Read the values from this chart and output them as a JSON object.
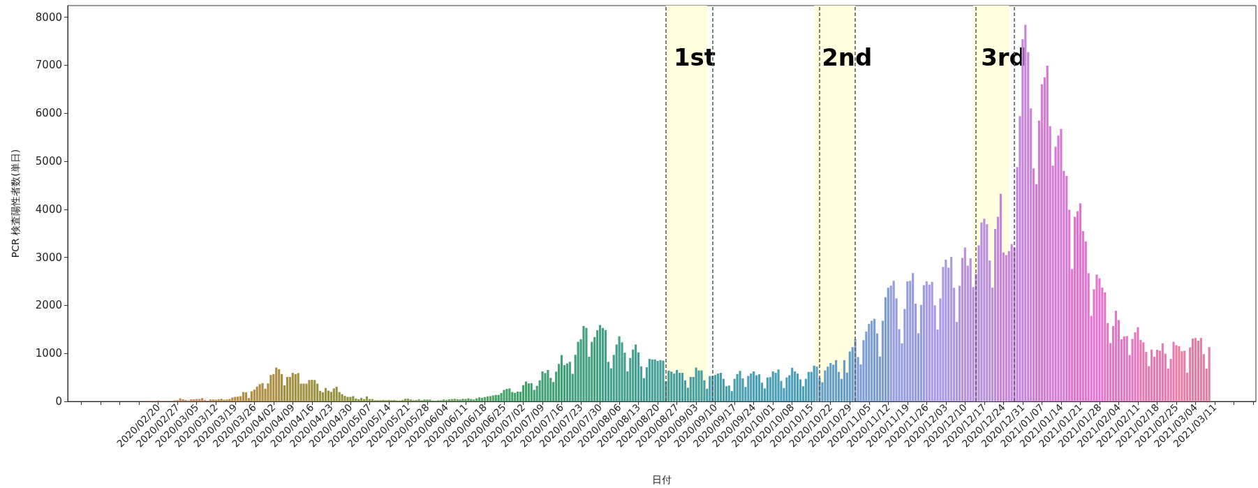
{
  "chart_data": {
    "type": "bar",
    "xlabel": "日付",
    "ylabel": "PCR 検査陽性者数(単日)",
    "xlim": [
      "2020-01-18",
      "2021-03-26"
    ],
    "ylim": [
      0,
      8240
    ],
    "yticks": [
      0,
      1000,
      2000,
      3000,
      4000,
      5000,
      6000,
      7000,
      8000
    ],
    "xticks": [
      {
        "value": "2020-01-23",
        "label": null
      },
      {
        "value": "2020-01-30",
        "label": null
      },
      {
        "value": "2020-02-06",
        "label": null
      },
      {
        "value": "2020-02-13",
        "label": null
      },
      {
        "value": "2020-02-20",
        "label": "2020/02/20"
      },
      {
        "value": "2020-02-27",
        "label": "2020/02/27"
      },
      {
        "value": "2020-03-05",
        "label": "2020/03/05"
      },
      {
        "value": "2020-03-12",
        "label": "2020/03/12"
      },
      {
        "value": "2020-03-19",
        "label": "2020/03/19"
      },
      {
        "value": "2020-03-26",
        "label": "2020/03/26"
      },
      {
        "value": "2020-04-02",
        "label": "2020/04/02"
      },
      {
        "value": "2020-04-09",
        "label": "2020/04/09"
      },
      {
        "value": "2020-04-16",
        "label": "2020/04/16"
      },
      {
        "value": "2020-04-23",
        "label": "2020/04/23"
      },
      {
        "value": "2020-04-30",
        "label": "2020/04/30"
      },
      {
        "value": "2020-05-07",
        "label": "2020/05/07"
      },
      {
        "value": "2020-05-14",
        "label": "2020/05/14"
      },
      {
        "value": "2020-05-21",
        "label": "2020/05/21"
      },
      {
        "value": "2020-05-28",
        "label": "2020/05/28"
      },
      {
        "value": "2020-06-04",
        "label": "2020/06/04"
      },
      {
        "value": "2020-06-11",
        "label": "2020/06/11"
      },
      {
        "value": "2020-06-18",
        "label": "2020/06/18"
      },
      {
        "value": "2020-06-25",
        "label": "2020/06/25"
      },
      {
        "value": "2020-07-02",
        "label": "2020/07/02"
      },
      {
        "value": "2020-07-09",
        "label": "2020/07/09"
      },
      {
        "value": "2020-07-16",
        "label": "2020/07/16"
      },
      {
        "value": "2020-07-23",
        "label": "2020/07/23"
      },
      {
        "value": "2020-07-30",
        "label": "2020/07/30"
      },
      {
        "value": "2020-08-06",
        "label": "2020/08/06"
      },
      {
        "value": "2020-08-13",
        "label": "2020/08/13"
      },
      {
        "value": "2020-08-20",
        "label": "2020/08/20"
      },
      {
        "value": "2020-08-27",
        "label": "2020/08/27"
      },
      {
        "value": "2020-09-03",
        "label": "2020/09/03"
      },
      {
        "value": "2020-09-10",
        "label": "2020/09/10"
      },
      {
        "value": "2020-09-17",
        "label": "2020/09/17"
      },
      {
        "value": "2020-09-24",
        "label": "2020/09/24"
      },
      {
        "value": "2020-10-01",
        "label": "2020/10/01"
      },
      {
        "value": "2020-10-08",
        "label": "2020/10/08"
      },
      {
        "value": "2020-10-15",
        "label": "2020/10/15"
      },
      {
        "value": "2020-10-22",
        "label": "2020/10/22"
      },
      {
        "value": "2020-10-29",
        "label": "2020/10/29"
      },
      {
        "value": "2020-11-05",
        "label": "2020/11/05"
      },
      {
        "value": "2020-11-12",
        "label": "2020/11/12"
      },
      {
        "value": "2020-11-19",
        "label": "2020/11/19"
      },
      {
        "value": "2020-11-26",
        "label": "2020/11/26"
      },
      {
        "value": "2020-12-03",
        "label": "2020/12/03"
      },
      {
        "value": "2020-12-10",
        "label": "2020/12/10"
      },
      {
        "value": "2020-12-17",
        "label": "2020/12/17"
      },
      {
        "value": "2020-12-24",
        "label": "2020/12/24"
      },
      {
        "value": "2020-12-31",
        "label": "2020/12/31"
      },
      {
        "value": "2021-01-07",
        "label": "2021/01/07"
      },
      {
        "value": "2021-01-14",
        "label": "2021/01/14"
      },
      {
        "value": "2021-01-21",
        "label": "2021/01/21"
      },
      {
        "value": "2021-01-28",
        "label": "2021/01/28"
      },
      {
        "value": "2021-02-04",
        "label": "2021/02/04"
      },
      {
        "value": "2021-02-11",
        "label": "2021/02/11"
      },
      {
        "value": "2021-02-18",
        "label": "2021/02/18"
      },
      {
        "value": "2021-02-25",
        "label": "2021/02/25"
      },
      {
        "value": "2021-03-04",
        "label": "2021/03/04"
      },
      {
        "value": "2021-03-11",
        "label": "2021/03/11"
      },
      {
        "value": "2021-03-18",
        "label": null
      },
      {
        "value": "2021-03-25",
        "label": null
      }
    ],
    "x": [
      "2020-02-15",
      "2020-02-16",
      "2020-02-17",
      "2020-02-18",
      "2020-02-19",
      "2020-02-20",
      "2020-02-21",
      "2020-02-22",
      "2020-02-23",
      "2020-02-24",
      "2020-02-25",
      "2020-02-26",
      "2020-02-27",
      "2020-02-28",
      "2020-02-29",
      "2020-03-01",
      "2020-03-02",
      "2020-03-03",
      "2020-03-04",
      "2020-03-05",
      "2020-03-06",
      "2020-03-07",
      "2020-03-08",
      "2020-03-09",
      "2020-03-10",
      "2020-03-11",
      "2020-03-12",
      "2020-03-13",
      "2020-03-14",
      "2020-03-15",
      "2020-03-16",
      "2020-03-17",
      "2020-03-18",
      "2020-03-19",
      "2020-03-20",
      "2020-03-21",
      "2020-03-22",
      "2020-03-23",
      "2020-03-24",
      "2020-03-25",
      "2020-03-26",
      "2020-03-27",
      "2020-03-28",
      "2020-03-29",
      "2020-03-30",
      "2020-03-31",
      "2020-04-01",
      "2020-04-02",
      "2020-04-03",
      "2020-04-04",
      "2020-04-05",
      "2020-04-06",
      "2020-04-07",
      "2020-04-08",
      "2020-04-09",
      "2020-04-10",
      "2020-04-11",
      "2020-04-12",
      "2020-04-13",
      "2020-04-14",
      "2020-04-15",
      "2020-04-16",
      "2020-04-17",
      "2020-04-18",
      "2020-04-19",
      "2020-04-20",
      "2020-04-21",
      "2020-04-22",
      "2020-04-23",
      "2020-04-24",
      "2020-04-25",
      "2020-04-26",
      "2020-04-27",
      "2020-04-28",
      "2020-04-29",
      "2020-04-30",
      "2020-05-01",
      "2020-05-02",
      "2020-05-03",
      "2020-05-04",
      "2020-05-05",
      "2020-05-06",
      "2020-05-07",
      "2020-05-08",
      "2020-05-09",
      "2020-05-10",
      "2020-05-11",
      "2020-05-12",
      "2020-05-13",
      "2020-05-14",
      "2020-05-15",
      "2020-05-16",
      "2020-05-17",
      "2020-05-18",
      "2020-05-19",
      "2020-05-20",
      "2020-05-21",
      "2020-05-22",
      "2020-05-23",
      "2020-05-24",
      "2020-05-25",
      "2020-05-26",
      "2020-05-27",
      "2020-05-28",
      "2020-05-29",
      "2020-05-30",
      "2020-05-31",
      "2020-06-01",
      "2020-06-02",
      "2020-06-03",
      "2020-06-04",
      "2020-06-05",
      "2020-06-06",
      "2020-06-07",
      "2020-06-08",
      "2020-06-09",
      "2020-06-10",
      "2020-06-11",
      "2020-06-12",
      "2020-06-13",
      "2020-06-14",
      "2020-06-15",
      "2020-06-16",
      "2020-06-17",
      "2020-06-18",
      "2020-06-19",
      "2020-06-20",
      "2020-06-21",
      "2020-06-22",
      "2020-06-23",
      "2020-06-24",
      "2020-06-25",
      "2020-06-26",
      "2020-06-27",
      "2020-06-28",
      "2020-06-29",
      "2020-06-30",
      "2020-07-01",
      "2020-07-02",
      "2020-07-03",
      "2020-07-04",
      "2020-07-05",
      "2020-07-06",
      "2020-07-07",
      "2020-07-08",
      "2020-07-09",
      "2020-07-10",
      "2020-07-11",
      "2020-07-12",
      "2020-07-13",
      "2020-07-14",
      "2020-07-15",
      "2020-07-16",
      "2020-07-17",
      "2020-07-18",
      "2020-07-19",
      "2020-07-20",
      "2020-07-21",
      "2020-07-22",
      "2020-07-23",
      "2020-07-24",
      "2020-07-25",
      "2020-07-26",
      "2020-07-27",
      "2020-07-28",
      "2020-07-29",
      "2020-07-30",
      "2020-07-31",
      "2020-08-01",
      "2020-08-02",
      "2020-08-03",
      "2020-08-04",
      "2020-08-05",
      "2020-08-06",
      "2020-08-07",
      "2020-08-08",
      "2020-08-09",
      "2020-08-10",
      "2020-08-11",
      "2020-08-12",
      "2020-08-13",
      "2020-08-14",
      "2020-08-15",
      "2020-08-16",
      "2020-08-17",
      "2020-08-18",
      "2020-08-19",
      "2020-08-20",
      "2020-08-21",
      "2020-08-22",
      "2020-08-23",
      "2020-08-24",
      "2020-08-25",
      "2020-08-26",
      "2020-08-27",
      "2020-08-28",
      "2020-08-29",
      "2020-08-30",
      "2020-08-31",
      "2020-09-01",
      "2020-09-02",
      "2020-09-03",
      "2020-09-04",
      "2020-09-05",
      "2020-09-06",
      "2020-09-07",
      "2020-09-08",
      "2020-09-09",
      "2020-09-10",
      "2020-09-11",
      "2020-09-12",
      "2020-09-13",
      "2020-09-14",
      "2020-09-15",
      "2020-09-16",
      "2020-09-17",
      "2020-09-18",
      "2020-09-19",
      "2020-09-20",
      "2020-09-21",
      "2020-09-22",
      "2020-09-23",
      "2020-09-24",
      "2020-09-25",
      "2020-09-26",
      "2020-09-27",
      "2020-09-28",
      "2020-09-29",
      "2020-09-30",
      "2020-10-01",
      "2020-10-02",
      "2020-10-03",
      "2020-10-04",
      "2020-10-05",
      "2020-10-06",
      "2020-10-07",
      "2020-10-08",
      "2020-10-09",
      "2020-10-10",
      "2020-10-11",
      "2020-10-12",
      "2020-10-13",
      "2020-10-14",
      "2020-10-15",
      "2020-10-16",
      "2020-10-17",
      "2020-10-18",
      "2020-10-19",
      "2020-10-20",
      "2020-10-21",
      "2020-10-22",
      "2020-10-23",
      "2020-10-24",
      "2020-10-25",
      "2020-10-26",
      "2020-10-27",
      "2020-10-28",
      "2020-10-29",
      "2020-10-30",
      "2020-10-31",
      "2020-11-01",
      "2020-11-02",
      "2020-11-03",
      "2020-11-04",
      "2020-11-05",
      "2020-11-06",
      "2020-11-07",
      "2020-11-08",
      "2020-11-09",
      "2020-11-10",
      "2020-11-11",
      "2020-11-12",
      "2020-11-13",
      "2020-11-14",
      "2020-11-15",
      "2020-11-16",
      "2020-11-17",
      "2020-11-18",
      "2020-11-19",
      "2020-11-20",
      "2020-11-21",
      "2020-11-22",
      "2020-11-23",
      "2020-11-24",
      "2020-11-25",
      "2020-11-26",
      "2020-11-27",
      "2020-11-28",
      "2020-11-29",
      "2020-11-30",
      "2020-12-01",
      "2020-12-02",
      "2020-12-03",
      "2020-12-04",
      "2020-12-05",
      "2020-12-06",
      "2020-12-07",
      "2020-12-08",
      "2020-12-09",
      "2020-12-10",
      "2020-12-11",
      "2020-12-12",
      "2020-12-13",
      "2020-12-14",
      "2020-12-15",
      "2020-12-16",
      "2020-12-17",
      "2020-12-18",
      "2020-12-19",
      "2020-12-20",
      "2020-12-21",
      "2020-12-22",
      "2020-12-23",
      "2020-12-24",
      "2020-12-25",
      "2020-12-26",
      "2020-12-27",
      "2020-12-28",
      "2020-12-29",
      "2020-12-30",
      "2020-12-31",
      "2021-01-01",
      "2021-01-02",
      "2021-01-03",
      "2021-01-04",
      "2021-01-05",
      "2021-01-06",
      "2021-01-07",
      "2021-01-08",
      "2021-01-09",
      "2021-01-10",
      "2021-01-11",
      "2021-01-12",
      "2021-01-13",
      "2021-01-14",
      "2021-01-15",
      "2021-01-16",
      "2021-01-17",
      "2021-01-18",
      "2021-01-19",
      "2021-01-20",
      "2021-01-21",
      "2021-01-22",
      "2021-01-23",
      "2021-01-24",
      "2021-01-25",
      "2021-01-26",
      "2021-01-27",
      "2021-01-28",
      "2021-01-29",
      "2021-01-30",
      "2021-01-31",
      "2021-02-01",
      "2021-02-02",
      "2021-02-03",
      "2021-02-04",
      "2021-02-05",
      "2021-02-06",
      "2021-02-07",
      "2021-02-08",
      "2021-02-09",
      "2021-02-10",
      "2021-02-11",
      "2021-02-12",
      "2021-02-13",
      "2021-02-14",
      "2021-02-15",
      "2021-02-16",
      "2021-02-17",
      "2021-02-18",
      "2021-02-19",
      "2021-02-20",
      "2021-02-21",
      "2021-02-22",
      "2021-02-23",
      "2021-02-24",
      "2021-02-25",
      "2021-02-26",
      "2021-02-27",
      "2021-02-28",
      "2021-03-01",
      "2021-03-02",
      "2021-03-03",
      "2021-03-04",
      "2021-03-05",
      "2021-03-06",
      "2021-03-07",
      "2021-03-08",
      "2021-03-09"
    ],
    "values": [
      10,
      10,
      10,
      10,
      15,
      20,
      15,
      10,
      10,
      10,
      15,
      20,
      25,
      65,
      45,
      30,
      20,
      45,
      45,
      50,
      50,
      70,
      30,
      15,
      40,
      40,
      35,
      45,
      55,
      35,
      40,
      50,
      80,
      95,
      100,
      110,
      195,
      190,
      70,
      210,
      245,
      310,
      360,
      380,
      265,
      375,
      550,
      570,
      705,
      670,
      570,
      335,
      510,
      510,
      595,
      570,
      590,
      370,
      370,
      370,
      445,
      450,
      445,
      370,
      220,
      190,
      280,
      225,
      200,
      270,
      305,
      195,
      150,
      115,
      95,
      95,
      110,
      60,
      45,
      75,
      50,
      105,
      50,
      50,
      25,
      25,
      25,
      30,
      25,
      30,
      25,
      30,
      20,
      20,
      30,
      55,
      55,
      40,
      25,
      30,
      45,
      25,
      40,
      40,
      40,
      20,
      15,
      25,
      25,
      40,
      30,
      45,
      50,
      55,
      45,
      40,
      55,
      50,
      65,
      50,
      40,
      65,
      85,
      75,
      90,
      105,
      110,
      125,
      135,
      135,
      175,
      240,
      260,
      270,
      195,
      180,
      205,
      200,
      340,
      415,
      375,
      380,
      240,
      325,
      440,
      625,
      590,
      655,
      490,
      405,
      620,
      780,
      965,
      755,
      790,
      825,
      575,
      970,
      1240,
      1295,
      1570,
      1530,
      930,
      1240,
      1340,
      1480,
      1590,
      1530,
      1485,
      825,
      690,
      970,
      1185,
      1355,
      1230,
      1015,
      625,
      905,
      1080,
      1185,
      1020,
      730,
      485,
      710,
      885,
      875,
      875,
      845,
      860,
      850,
      420,
      640,
      620,
      580,
      655,
      595,
      595,
      440,
      285,
      510,
      510,
      705,
      645,
      645,
      440,
      265,
      530,
      530,
      550,
      580,
      595,
      470,
      315,
      330,
      215,
      470,
      570,
      635,
      480,
      300,
      530,
      580,
      625,
      545,
      565,
      390,
      270,
      500,
      505,
      625,
      595,
      665,
      425,
      280,
      500,
      545,
      700,
      625,
      580,
      460,
      315,
      470,
      615,
      615,
      745,
      725,
      490,
      400,
      645,
      725,
      800,
      765,
      860,
      615,
      470,
      860,
      600,
      1040,
      1130,
      1295,
      925,
      770,
      1275,
      1455,
      1615,
      1680,
      1720,
      1415,
      935,
      1680,
      2170,
      2365,
      2410,
      2510,
      2145,
      1505,
      1210,
      1925,
      2500,
      2510,
      2670,
      2035,
      1420,
      2010,
      2420,
      2500,
      2430,
      2490,
      2000,
      1495,
      2145,
      2800,
      2950,
      2785,
      3010,
      2365,
      1655,
      2405,
      2985,
      3205,
      2825,
      2980,
      2380,
      2655,
      3250,
      3725,
      3805,
      3690,
      2935,
      2370,
      3590,
      3845,
      4325,
      3100,
      3045,
      3130,
      3275,
      3200,
      4880,
      5940,
      7540,
      7840,
      7270,
      6100,
      4850,
      4525,
      5845,
      6600,
      6745,
      6990,
      5730,
      4910,
      5300,
      5535,
      5670,
      4800,
      4695,
      3990,
      2755,
      3845,
      3960,
      4125,
      3545,
      3330,
      2670,
      1780,
      2335,
      2640,
      2565,
      2370,
      2270,
      1630,
      1215,
      1570,
      1890,
      1695,
      1295,
      1355,
      1360,
      965,
      1300,
      1440,
      1545,
      1280,
      1230,
      1030,
      735,
      1080,
      930,
      1075,
      1055,
      1210,
      995,
      685,
      885,
      1240,
      1170,
      1150,
      1045,
      1055,
      600,
      1125,
      1310,
      1320,
      1265,
      1320,
      985,
      685,
      1130
    ],
    "colors": [
      "#d2896e",
      "#d2896e",
      "#d2896e",
      "#d2896e",
      "#d2896e",
      "#d2896e",
      "#d2896e",
      "#d2896e",
      "#d2896e",
      "#d2896e",
      "#c68a5a",
      "#c68a5a",
      "#c68a5a",
      "#c68a5a",
      "#c68a5a",
      "#c68a5a",
      "#c68a5a",
      "#c68a5a",
      "#c68a5a",
      "#c68a5a",
      "#c68a5a",
      "#c68a5a",
      "#c68a5a",
      "#bb8c46",
      "#bb8c46",
      "#bb8c46",
      "#bb8c46",
      "#bb8c46",
      "#bb8c46",
      "#bb8c46",
      "#bb8c46",
      "#bb8c46",
      "#bb8c46",
      "#bb8c46",
      "#bb8c46",
      "#bb8c46",
      "#ae8e44",
      "#ae8e44",
      "#ae8e44",
      "#ae8e44",
      "#ae8e44",
      "#ae8e44",
      "#ae8e44",
      "#ae8e44",
      "#ae8e44",
      "#ae8e44",
      "#ae8e44",
      "#ae8e44",
      "#ae8e44",
      "#a39143",
      "#a39143",
      "#a39143",
      "#a39143",
      "#a39143",
      "#a39143",
      "#a39143",
      "#a39143",
      "#a39143",
      "#a39143",
      "#a39143",
      "#a39143",
      "#a39143",
      "#979240",
      "#979240",
      "#979240",
      "#979240",
      "#979240",
      "#979240",
      "#979240",
      "#979240",
      "#979240",
      "#979240",
      "#979240",
      "#979240",
      "#979240",
      "#8c9640",
      "#8c9640",
      "#8c9640",
      "#8c9640",
      "#8c9640",
      "#8c9640",
      "#8c9640",
      "#8c9640",
      "#8c9640",
      "#8c9640",
      "#8c9640",
      "#8c9640",
      "#8c9640",
      "#7c9a4c",
      "#7c9a4c",
      "#7c9a4c",
      "#7c9a4c",
      "#7c9a4c",
      "#7c9a4c",
      "#7c9a4c",
      "#7c9a4c",
      "#7c9a4c",
      "#7c9a4c",
      "#7c9a4c",
      "#7c9a4c",
      "#7c9a4c",
      "#6b9f58",
      "#6b9f58",
      "#6b9f58",
      "#6b9f58",
      "#6b9f58",
      "#6b9f58",
      "#6b9f58",
      "#6b9f58",
      "#6b9f58",
      "#6b9f58",
      "#6b9f58",
      "#6b9f58",
      "#6b9f58",
      "#6b9f58",
      "#57a262",
      "#57a262",
      "#57a262",
      "#57a262",
      "#57a262",
      "#57a262",
      "#57a262",
      "#57a262",
      "#57a262",
      "#57a262",
      "#57a262",
      "#57a262",
      "#57a262",
      "#42a169",
      "#42a169",
      "#42a169",
      "#42a169",
      "#42a169",
      "#42a169",
      "#42a169",
      "#42a169",
      "#42a169",
      "#42a169",
      "#42a169",
      "#42a169",
      "#42a169",
      "#42a075",
      "#42a075",
      "#42a075",
      "#42a075",
      "#42a075",
      "#42a075",
      "#42a075",
      "#42a075",
      "#42a075",
      "#42a075",
      "#42a075",
      "#42a075",
      "#42a075",
      "#439f80",
      "#439f80",
      "#439f80",
      "#439f80",
      "#439f80",
      "#439f80",
      "#439f80",
      "#439f80",
      "#439f80",
      "#439f80",
      "#439f80",
      "#439f80",
      "#439f80",
      "#449f8c",
      "#449f8c",
      "#449f8c",
      "#449f8c",
      "#449f8c",
      "#449f8c",
      "#449f8c",
      "#449f8c",
      "#449f8c",
      "#449f8c",
      "#449f8c",
      "#449f8c",
      "#449f8c",
      "#459e97",
      "#459e97",
      "#459e97",
      "#459e97",
      "#459e97",
      "#459e97",
      "#459e97",
      "#459e97",
      "#459e97",
      "#459e97",
      "#459e97",
      "#459e97",
      "#459e97",
      "#469ea0",
      "#469ea0",
      "#469ea0",
      "#469ea0",
      "#469ea0",
      "#469ea0",
      "#469ea0",
      "#469ea0",
      "#469ea0",
      "#469ea0",
      "#469ea0",
      "#469ea0",
      "#469ea0",
      "#489eaa",
      "#489eaa",
      "#489eaa",
      "#489eaa",
      "#489eaa",
      "#489eaa",
      "#489eaa",
      "#489eaa",
      "#489eaa",
      "#489eaa",
      "#489eaa",
      "#489eaa",
      "#489eaa",
      "#4a9fb4",
      "#4a9fb4",
      "#4a9fb4",
      "#4a9fb4",
      "#4a9fb4",
      "#4a9fb4",
      "#4a9fb4",
      "#4a9fb4",
      "#4a9fb4",
      "#4a9fb4",
      "#4a9fb4",
      "#4a9fb4",
      "#4a9fb4",
      "#4c9ebd",
      "#4c9ebd",
      "#4c9ebd",
      "#4c9ebd",
      "#4c9ebd",
      "#4c9ebd",
      "#4c9ebd",
      "#4c9ebd",
      "#4c9ebd",
      "#4c9ebd",
      "#4c9ebd",
      "#4c9ebd",
      "#4c9ebd",
      "#659ec9",
      "#659ec9",
      "#659ec9",
      "#659ec9",
      "#659ec9",
      "#659ec9",
      "#659ec9",
      "#659ec9",
      "#659ec9",
      "#659ec9",
      "#659ec9",
      "#659ec9",
      "#659ec9",
      "#659ec9",
      "#7d9ed4",
      "#7d9ed4",
      "#7d9ed4",
      "#7d9ed4",
      "#7d9ed4",
      "#7d9ed4",
      "#7d9ed4",
      "#7d9ed4",
      "#7d9ed4",
      "#7d9ed4",
      "#7d9ed4",
      "#7d9ed4",
      "#7d9ed4",
      "#969ddf",
      "#969ddf",
      "#969ddf",
      "#969ddf",
      "#969ddf",
      "#969ddf",
      "#969ddf",
      "#969ddf",
      "#969ddf",
      "#969ddf",
      "#969ddf",
      "#969ddf",
      "#969ddf",
      "#ab99e7",
      "#ab99e7",
      "#ab99e7",
      "#ab99e7",
      "#ab99e7",
      "#ab99e7",
      "#ab99e7",
      "#ab99e7",
      "#ab99e7",
      "#ab99e7",
      "#ab99e7",
      "#ab99e7",
      "#ab99e7",
      "#b88fe1",
      "#b88fe1",
      "#b88fe1",
      "#b88fe1",
      "#b88fe1",
      "#b88fe1",
      "#b88fe1",
      "#b88fe1",
      "#b88fe1",
      "#b88fe1",
      "#b88fe1",
      "#b88fe1",
      "#b88fe1",
      "#c685db",
      "#c685db",
      "#c685db",
      "#c685db",
      "#c685db",
      "#c685db",
      "#c685db",
      "#c685db",
      "#c685db",
      "#c685db",
      "#c685db",
      "#c685db",
      "#c685db",
      "#d37bd4",
      "#d37bd4",
      "#d37bd4",
      "#d37bd4",
      "#d37bd4",
      "#d37bd4",
      "#d37bd4",
      "#d37bd4",
      "#d37bd4",
      "#d37bd4",
      "#d37bd4",
      "#d37bd4",
      "#d37bd4",
      "#e374d1",
      "#e374d1",
      "#e374d1",
      "#e374d1",
      "#e374d1",
      "#e374d1",
      "#e374d1",
      "#e374d1",
      "#e374d1",
      "#e374d1",
      "#e374d1",
      "#e374d1",
      "#e374d1",
      "#e477c1",
      "#e477c1",
      "#e477c1",
      "#e477c1",
      "#e477c1",
      "#e477c1",
      "#e477c1",
      "#e477c1",
      "#e477c1",
      "#e477c1",
      "#e477c1",
      "#e477c1",
      "#e477c1",
      "#e47bb2",
      "#e47bb2",
      "#e47bb2",
      "#e47bb2",
      "#e47bb2",
      "#e47bb2",
      "#e47bb2",
      "#e47bb2",
      "#e47bb2",
      "#e47bb2",
      "#e47bb2",
      "#e47bb2",
      "#e47bb2",
      "#e57ea3",
      "#e57ea3",
      "#e57ea3",
      "#e57ea3",
      "#e57ea3",
      "#e57ea3",
      "#e57ea3",
      "#e57ea3",
      "#e57ea3",
      "#e57ea3",
      "#e57ea3",
      "#e57ea3",
      "#e57ea3"
    ],
    "bands": [
      {
        "axis": "x",
        "from": "2020-08-23",
        "to": "2020-09-07",
        "label": "1st",
        "color": "#ffffe0"
      },
      {
        "axis": "x",
        "from": "2020-10-16",
        "to": "2020-10-31",
        "label": "2nd",
        "color": "#ffffe0"
      },
      {
        "axis": "x",
        "from": "2020-12-13",
        "to": "2020-12-26",
        "label": "3rd",
        "color": "#ffffe0"
      }
    ],
    "ref_lines": [
      {
        "axis": "x",
        "value": "2020-08-23",
        "color": "#555555",
        "line_style": "dashed"
      },
      {
        "axis": "x",
        "value": "2020-09-09",
        "color": "#555555",
        "line_style": "dashed"
      },
      {
        "axis": "x",
        "value": "2020-10-18",
        "color": "#555555",
        "line_style": "dashed"
      },
      {
        "axis": "x",
        "value": "2020-10-31",
        "color": "#555555",
        "line_style": "dashed"
      },
      {
        "axis": "x",
        "value": "2020-12-14",
        "color": "#555555",
        "line_style": "dashed"
      },
      {
        "axis": "x",
        "value": "2020-12-28",
        "color": "#555555",
        "line_style": "dashed"
      }
    ]
  }
}
